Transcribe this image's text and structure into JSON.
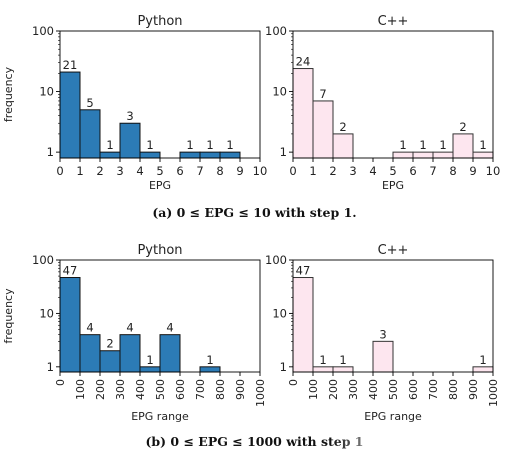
{
  "chart_data": [
    {
      "type": "bar",
      "title": "Python",
      "xlabel": "EPG",
      "ylabel": "frequency",
      "yscale": "log",
      "ylim": [
        0.8,
        100
      ],
      "yticks": [
        "1",
        "10",
        "100"
      ],
      "xticks": [
        "0",
        "1",
        "2",
        "3",
        "4",
        "5",
        "6",
        "7",
        "8",
        "9",
        "10"
      ],
      "bins": [
        0,
        1,
        2,
        3,
        4,
        5,
        6,
        7,
        8,
        9
      ],
      "values": [
        21,
        5,
        1,
        3,
        1,
        0,
        1,
        1,
        1,
        0
      ],
      "labels": [
        "21",
        "5",
        "1",
        "3",
        "1",
        "",
        "1",
        "1",
        "1",
        ""
      ],
      "color": "#2c7bb6"
    },
    {
      "type": "bar",
      "title": "C++",
      "xlabel": "EPG",
      "ylabel": "",
      "yscale": "log",
      "ylim": [
        0.8,
        100
      ],
      "yticks": [
        "1",
        "10",
        "100"
      ],
      "xticks": [
        "0",
        "1",
        "2",
        "3",
        "4",
        "5",
        "6",
        "7",
        "8",
        "9",
        "10"
      ],
      "bins": [
        0,
        1,
        2,
        3,
        4,
        5,
        6,
        7,
        8,
        9
      ],
      "values": [
        24,
        7,
        2,
        0,
        0,
        1,
        1,
        1,
        2,
        1
      ],
      "labels": [
        "24",
        "7",
        "2",
        "",
        "",
        "1",
        "1",
        "1",
        "2",
        "1"
      ],
      "color": "#fde6ef"
    },
    {
      "type": "bar",
      "title": "Python",
      "xlabel": "EPG range",
      "ylabel": "frequency",
      "yscale": "log",
      "ylim": [
        0.8,
        100
      ],
      "yticks": [
        "1",
        "10",
        "100"
      ],
      "xticks": [
        "0",
        "100",
        "200",
        "300",
        "400",
        "500",
        "600",
        "700",
        "800",
        "900",
        "1000"
      ],
      "bins": [
        0,
        100,
        200,
        300,
        400,
        500,
        600,
        700,
        800,
        900
      ],
      "values": [
        47,
        4,
        2,
        4,
        1,
        4,
        0,
        1,
        0,
        0
      ],
      "labels": [
        "47",
        "4",
        "2",
        "4",
        "1",
        "4",
        "",
        "1",
        "",
        ""
      ],
      "color": "#2c7bb6"
    },
    {
      "type": "bar",
      "title": "C++",
      "xlabel": "EPG range",
      "ylabel": "",
      "yscale": "log",
      "ylim": [
        0.8,
        100
      ],
      "yticks": [
        "1",
        "10",
        "100"
      ],
      "xticks": [
        "0",
        "100",
        "200",
        "300",
        "400",
        "500",
        "600",
        "700",
        "800",
        "900",
        "1000"
      ],
      "bins": [
        0,
        100,
        200,
        300,
        400,
        500,
        600,
        700,
        800,
        900
      ],
      "values": [
        47,
        1,
        1,
        0,
        3,
        0,
        0,
        0,
        0,
        1
      ],
      "labels": [
        "47",
        "1",
        "1",
        "",
        "3",
        "",
        "",
        "",
        "",
        "1"
      ],
      "color": "#fde6ef"
    }
  ],
  "captions": {
    "a": "(a) 0 ≤ EPG ≤ 10 with step 1.",
    "b": "(b) 0 ≤ EPG ≤ 1000 with step 1"
  }
}
